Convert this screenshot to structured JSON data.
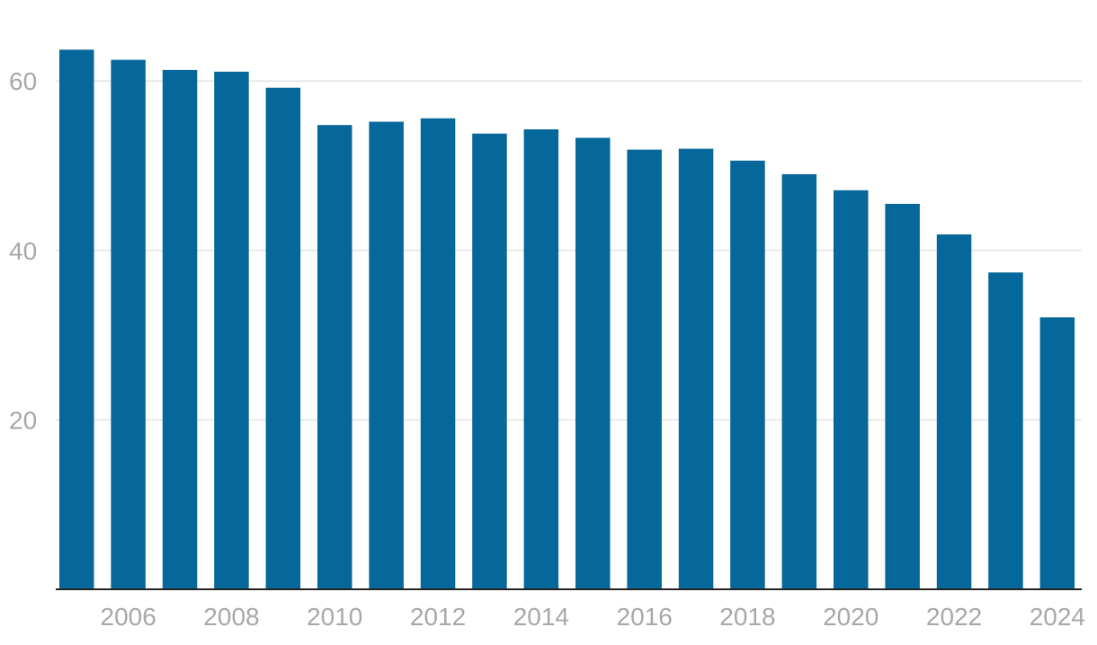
{
  "colors": {
    "bar": "#06689a",
    "grid": "#e3e3e3",
    "axis": "#222222",
    "tick_text": "#a8a8a8",
    "background": "#ffffff"
  },
  "chart_data": {
    "type": "bar",
    "title": "",
    "xlabel": "",
    "ylabel": "",
    "categories": [
      "2005",
      "2006",
      "2007",
      "2008",
      "2009",
      "2010",
      "2011",
      "2012",
      "2013",
      "2014",
      "2015",
      "2016",
      "2017",
      "2018",
      "2019",
      "2020",
      "2021",
      "2022",
      "2023",
      "2024"
    ],
    "values": [
      63.7,
      62.5,
      61.3,
      61.1,
      59.2,
      54.8,
      55.2,
      55.6,
      53.8,
      54.3,
      53.3,
      51.9,
      52.0,
      50.6,
      49.0,
      47.1,
      45.5,
      41.9,
      37.4,
      32.1
    ],
    "x_tick_labels": [
      "2006",
      "2008",
      "2010",
      "2012",
      "2014",
      "2016",
      "2018",
      "2020",
      "2022",
      "2024"
    ],
    "y_ticks": [
      20,
      40,
      60
    ],
    "ylim": [
      0,
      66
    ],
    "grid": true,
    "legend": "none"
  }
}
